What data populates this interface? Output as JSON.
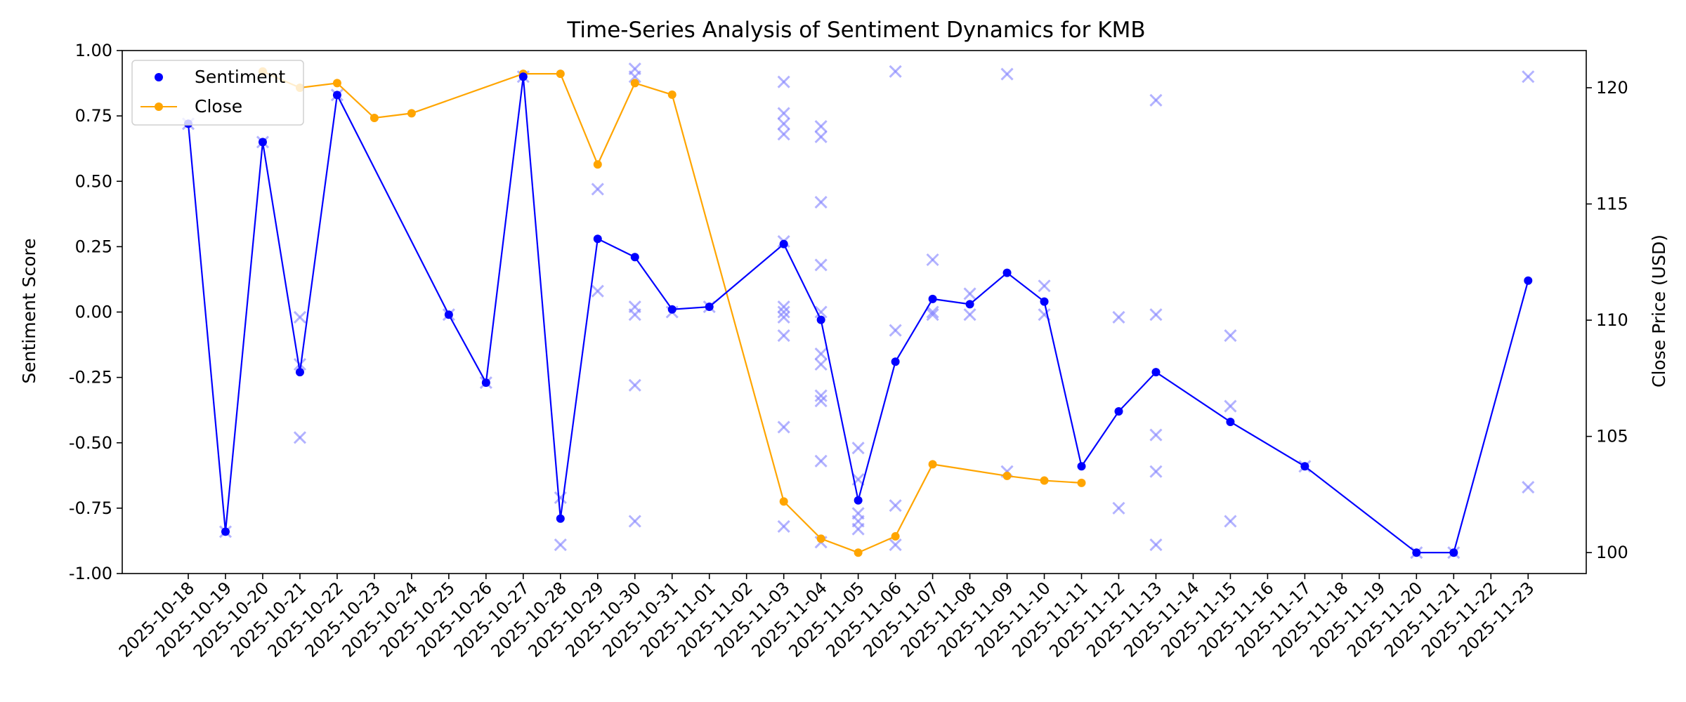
{
  "chart_data": {
    "type": "line",
    "title": "Time-Series Analysis of Sentiment Dynamics for KMB",
    "ylabel": "Sentiment Score",
    "y2label": "Close Price (USD)",
    "xlabel": "",
    "ylim": [
      -1.0,
      1.0
    ],
    "y2lim": [
      99.1,
      121.6
    ],
    "x_ticks": [
      "2025-10-18",
      "2025-10-19",
      "2025-10-20",
      "2025-10-21",
      "2025-10-22",
      "2025-10-23",
      "2025-10-24",
      "2025-10-25",
      "2025-10-26",
      "2025-10-27",
      "2025-10-28",
      "2025-10-29",
      "2025-10-30",
      "2025-10-31",
      "2025-11-01",
      "2025-11-02",
      "2025-11-03",
      "2025-11-04",
      "2025-11-05",
      "2025-11-06",
      "2025-11-07",
      "2025-11-08",
      "2025-11-09",
      "2025-11-10",
      "2025-11-11",
      "2025-11-12",
      "2025-11-13",
      "2025-11-14",
      "2025-11-15",
      "2025-11-16",
      "2025-11-17",
      "2025-11-18",
      "2025-11-19",
      "2025-11-20",
      "2025-11-21",
      "2025-11-22",
      "2025-11-23"
    ],
    "y_ticks": [
      "-1.00",
      "-0.75",
      "-0.50",
      "-0.25",
      "0.00",
      "0.25",
      "0.50",
      "0.75",
      "1.00"
    ],
    "y_tick_values": [
      -1.0,
      -0.75,
      -0.5,
      -0.25,
      0.0,
      0.25,
      0.5,
      0.75,
      1.0
    ],
    "y2_ticks": [
      "100",
      "105",
      "110",
      "115",
      "120"
    ],
    "y2_tick_values": [
      100,
      105,
      110,
      115,
      120
    ],
    "grid": false,
    "legend": {
      "position": "top-left",
      "entries": [
        "Sentiment",
        "Close"
      ]
    },
    "colors": {
      "sentiment": "#0000ff",
      "close": "#ffa500",
      "individual": "#8080ff"
    },
    "series": [
      {
        "name": "Sentiment",
        "axis": "left",
        "style": "line-dots",
        "points": [
          {
            "x": "2025-10-18",
            "y": 0.72
          },
          {
            "x": "2025-10-19",
            "y": -0.84
          },
          {
            "x": "2025-10-20",
            "y": 0.65
          },
          {
            "x": "2025-10-21",
            "y": -0.23
          },
          {
            "x": "2025-10-22",
            "y": 0.83
          },
          {
            "x": "2025-10-25",
            "y": -0.01
          },
          {
            "x": "2025-10-26",
            "y": -0.27
          },
          {
            "x": "2025-10-27",
            "y": 0.9
          },
          {
            "x": "2025-10-28",
            "y": -0.79
          },
          {
            "x": "2025-10-29",
            "y": 0.28
          },
          {
            "x": "2025-10-30",
            "y": 0.21
          },
          {
            "x": "2025-10-31",
            "y": 0.01
          },
          {
            "x": "2025-11-01",
            "y": 0.02
          },
          {
            "x": "2025-11-03",
            "y": 0.26
          },
          {
            "x": "2025-11-04",
            "y": -0.03
          },
          {
            "x": "2025-11-05",
            "y": -0.72
          },
          {
            "x": "2025-11-06",
            "y": -0.19
          },
          {
            "x": "2025-11-07",
            "y": 0.05
          },
          {
            "x": "2025-11-08",
            "y": 0.03
          },
          {
            "x": "2025-11-09",
            "y": 0.15
          },
          {
            "x": "2025-11-10",
            "y": 0.04
          },
          {
            "x": "2025-11-11",
            "y": -0.59
          },
          {
            "x": "2025-11-12",
            "y": -0.38
          },
          {
            "x": "2025-11-13",
            "y": -0.23
          },
          {
            "x": "2025-11-15",
            "y": -0.42
          },
          {
            "x": "2025-11-17",
            "y": -0.59
          },
          {
            "x": "2025-11-20",
            "y": -0.92
          },
          {
            "x": "2025-11-21",
            "y": -0.92
          },
          {
            "x": "2025-11-23",
            "y": 0.12
          }
        ]
      },
      {
        "name": "Close",
        "axis": "right",
        "style": "line-dots",
        "points": [
          {
            "x": "2025-10-20",
            "y": 120.7
          },
          {
            "x": "2025-10-21",
            "y": 120.0
          },
          {
            "x": "2025-10-22",
            "y": 120.2
          },
          {
            "x": "2025-10-23",
            "y": 118.7
          },
          {
            "x": "2025-10-24",
            "y": 118.9
          },
          {
            "x": "2025-10-27",
            "y": 120.6
          },
          {
            "x": "2025-10-28",
            "y": 120.6
          },
          {
            "x": "2025-10-29",
            "y": 116.7
          },
          {
            "x": "2025-10-30",
            "y": 120.2
          },
          {
            "x": "2025-10-31",
            "y": 119.7
          },
          {
            "x": "2025-11-03",
            "y": 102.2
          },
          {
            "x": "2025-11-04",
            "y": 100.6
          },
          {
            "x": "2025-11-05",
            "y": 100.0
          },
          {
            "x": "2025-11-06",
            "y": 100.7
          },
          {
            "x": "2025-11-07",
            "y": 103.8
          },
          {
            "x": "2025-11-09",
            "y": 103.3
          },
          {
            "x": "2025-11-10",
            "y": 103.1
          },
          {
            "x": "2025-11-11",
            "y": 103.0
          }
        ]
      },
      {
        "axis": "left",
        "style": "x-markers",
        "points": [
          {
            "x": "2025-10-18",
            "y": 0.72
          },
          {
            "x": "2025-10-19",
            "y": -0.84
          },
          {
            "x": "2025-10-20",
            "y": 0.65
          },
          {
            "x": "2025-10-21",
            "y": -0.02
          },
          {
            "x": "2025-10-21",
            "y": -0.2
          },
          {
            "x": "2025-10-21",
            "y": -0.48
          },
          {
            "x": "2025-10-22",
            "y": 0.83
          },
          {
            "x": "2025-10-25",
            "y": -0.01
          },
          {
            "x": "2025-10-26",
            "y": -0.27
          },
          {
            "x": "2025-10-27",
            "y": 0.9
          },
          {
            "x": "2025-10-28",
            "y": -0.71
          },
          {
            "x": "2025-10-28",
            "y": -0.89
          },
          {
            "x": "2025-10-29",
            "y": 0.47
          },
          {
            "x": "2025-10-29",
            "y": 0.08
          },
          {
            "x": "2025-10-30",
            "y": 0.93
          },
          {
            "x": "2025-10-30",
            "y": 0.9
          },
          {
            "x": "2025-10-30",
            "y": 0.02
          },
          {
            "x": "2025-10-30",
            "y": -0.01
          },
          {
            "x": "2025-10-30",
            "y": -0.28
          },
          {
            "x": "2025-10-30",
            "y": -0.8
          },
          {
            "x": "2025-10-31",
            "y": 0.0
          },
          {
            "x": "2025-11-01",
            "y": 0.02
          },
          {
            "x": "2025-11-03",
            "y": 0.88
          },
          {
            "x": "2025-11-03",
            "y": 0.76
          },
          {
            "x": "2025-11-03",
            "y": 0.72
          },
          {
            "x": "2025-11-03",
            "y": 0.68
          },
          {
            "x": "2025-11-03",
            "y": 0.27
          },
          {
            "x": "2025-11-03",
            "y": 0.02
          },
          {
            "x": "2025-11-03",
            "y": 0.0
          },
          {
            "x": "2025-11-03",
            "y": -0.02
          },
          {
            "x": "2025-11-03",
            "y": -0.09
          },
          {
            "x": "2025-11-03",
            "y": -0.44
          },
          {
            "x": "2025-11-03",
            "y": -0.82
          },
          {
            "x": "2025-11-04",
            "y": 0.71
          },
          {
            "x": "2025-11-04",
            "y": 0.67
          },
          {
            "x": "2025-11-04",
            "y": 0.42
          },
          {
            "x": "2025-11-04",
            "y": 0.18
          },
          {
            "x": "2025-11-04",
            "y": 0.0
          },
          {
            "x": "2025-11-04",
            "y": -0.16
          },
          {
            "x": "2025-11-04",
            "y": -0.2
          },
          {
            "x": "2025-11-04",
            "y": -0.32
          },
          {
            "x": "2025-11-04",
            "y": -0.34
          },
          {
            "x": "2025-11-04",
            "y": -0.57
          },
          {
            "x": "2025-11-04",
            "y": -0.88
          },
          {
            "x": "2025-11-05",
            "y": -0.52
          },
          {
            "x": "2025-11-05",
            "y": -0.64
          },
          {
            "x": "2025-11-05",
            "y": -0.77
          },
          {
            "x": "2025-11-05",
            "y": -0.8
          },
          {
            "x": "2025-11-05",
            "y": -0.83
          },
          {
            "x": "2025-11-06",
            "y": 0.92
          },
          {
            "x": "2025-11-06",
            "y": -0.07
          },
          {
            "x": "2025-11-06",
            "y": -0.74
          },
          {
            "x": "2025-11-06",
            "y": -0.89
          },
          {
            "x": "2025-11-07",
            "y": 0.2
          },
          {
            "x": "2025-11-07",
            "y": 0.0
          },
          {
            "x": "2025-11-07",
            "y": -0.01
          },
          {
            "x": "2025-11-08",
            "y": 0.07
          },
          {
            "x": "2025-11-08",
            "y": -0.01
          },
          {
            "x": "2025-11-09",
            "y": 0.91
          },
          {
            "x": "2025-11-09",
            "y": -0.61
          },
          {
            "x": "2025-11-10",
            "y": 0.1
          },
          {
            "x": "2025-11-10",
            "y": -0.01
          },
          {
            "x": "2025-11-12",
            "y": -0.02
          },
          {
            "x": "2025-11-12",
            "y": -0.75
          },
          {
            "x": "2025-11-13",
            "y": 0.81
          },
          {
            "x": "2025-11-13",
            "y": -0.01
          },
          {
            "x": "2025-11-13",
            "y": -0.47
          },
          {
            "x": "2025-11-13",
            "y": -0.61
          },
          {
            "x": "2025-11-13",
            "y": -0.89
          },
          {
            "x": "2025-11-15",
            "y": -0.09
          },
          {
            "x": "2025-11-15",
            "y": -0.36
          },
          {
            "x": "2025-11-15",
            "y": -0.8
          },
          {
            "x": "2025-11-17",
            "y": -0.59
          },
          {
            "x": "2025-11-20",
            "y": -0.92
          },
          {
            "x": "2025-11-21",
            "y": -0.92
          },
          {
            "x": "2025-11-23",
            "y": 0.9
          },
          {
            "x": "2025-11-23",
            "y": -0.67
          }
        ]
      }
    ]
  }
}
